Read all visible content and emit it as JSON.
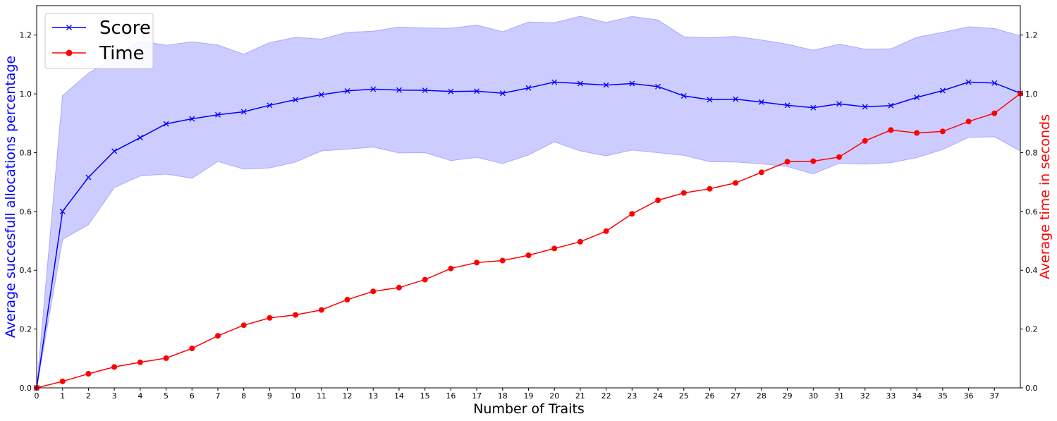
{
  "chart_data": {
    "type": "line",
    "title": "",
    "xlabel": "Number of Traits",
    "ylabel_left": "Average succesfull allocations percentage",
    "ylabel_right": "Average time in seconds",
    "xlim": [
      0,
      38
    ],
    "ylim_left": [
      0,
      1.3
    ],
    "ylim_right": [
      0,
      1.3
    ],
    "x_ticks": [
      0,
      1,
      2,
      3,
      4,
      5,
      6,
      7,
      8,
      9,
      10,
      11,
      12,
      13,
      14,
      15,
      16,
      17,
      18,
      19,
      20,
      21,
      22,
      23,
      24,
      25,
      26,
      27,
      28,
      29,
      30,
      31,
      32,
      33,
      34,
      35,
      36,
      37
    ],
    "y_ticks": [
      "0.0",
      "0.2",
      "0.4",
      "0.6",
      "0.8",
      "1.0",
      "1.2"
    ],
    "y_tick_values": [
      0,
      0.2,
      0.4,
      0.6,
      0.8,
      1.0,
      1.2
    ],
    "grid": false,
    "legend_position": "top-left",
    "x": [
      0,
      1,
      2,
      3,
      4,
      5,
      6,
      7,
      8,
      9,
      10,
      11,
      12,
      13,
      14,
      15,
      16,
      17,
      18,
      19,
      20,
      21,
      22,
      23,
      24,
      25,
      26,
      27,
      28,
      29,
      30,
      31,
      32,
      33,
      34,
      35,
      36,
      37,
      38
    ],
    "series": [
      {
        "name": "Score",
        "axis": "left",
        "color": "#0000ff",
        "marker": "x",
        "values": [
          0.0,
          0.6,
          0.716,
          0.805,
          0.851,
          0.898,
          0.915,
          0.929,
          0.939,
          0.961,
          0.98,
          0.997,
          1.01,
          1.016,
          1.013,
          1.012,
          1.008,
          1.009,
          1.002,
          1.02,
          1.04,
          1.035,
          1.03,
          1.035,
          1.025,
          0.993,
          0.98,
          0.982,
          0.972,
          0.961,
          0.953,
          0.966,
          0.956,
          0.96,
          0.988,
          1.011,
          1.04,
          1.037,
          1.002
        ],
        "band_lower": [
          0.0,
          0.505,
          0.555,
          0.681,
          0.721,
          0.727,
          0.713,
          0.77,
          0.744,
          0.748,
          0.768,
          0.806,
          0.812,
          0.819,
          0.799,
          0.8,
          0.773,
          0.784,
          0.763,
          0.792,
          0.837,
          0.806,
          0.789,
          0.809,
          0.8,
          0.791,
          0.769,
          0.768,
          0.762,
          0.753,
          0.728,
          0.764,
          0.761,
          0.766,
          0.783,
          0.811,
          0.852,
          0.854,
          0.806
        ],
        "band_upper": [
          0.0,
          0.994,
          1.07,
          1.124,
          1.18,
          1.165,
          1.177,
          1.166,
          1.135,
          1.174,
          1.192,
          1.186,
          1.209,
          1.213,
          1.227,
          1.224,
          1.223,
          1.234,
          1.211,
          1.244,
          1.242,
          1.264,
          1.243,
          1.263,
          1.251,
          1.194,
          1.191,
          1.195,
          1.183,
          1.169,
          1.148,
          1.169,
          1.152,
          1.153,
          1.192,
          1.209,
          1.228,
          1.222,
          1.197
        ]
      },
      {
        "name": "Time",
        "axis": "right",
        "color": "#ff0000",
        "marker": "o",
        "values": [
          0.0,
          0.022,
          0.048,
          0.071,
          0.087,
          0.101,
          0.134,
          0.177,
          0.213,
          0.238,
          0.248,
          0.265,
          0.3,
          0.328,
          0.341,
          0.368,
          0.406,
          0.426,
          0.433,
          0.451,
          0.474,
          0.497,
          0.533,
          0.592,
          0.638,
          0.663,
          0.677,
          0.697,
          0.733,
          0.769,
          0.771,
          0.785,
          0.84,
          0.877,
          0.867,
          0.872,
          0.906,
          0.934,
          1.001
        ]
      }
    ],
    "band_color": "#ccccff",
    "band_edge_color": "#aaaaff"
  }
}
